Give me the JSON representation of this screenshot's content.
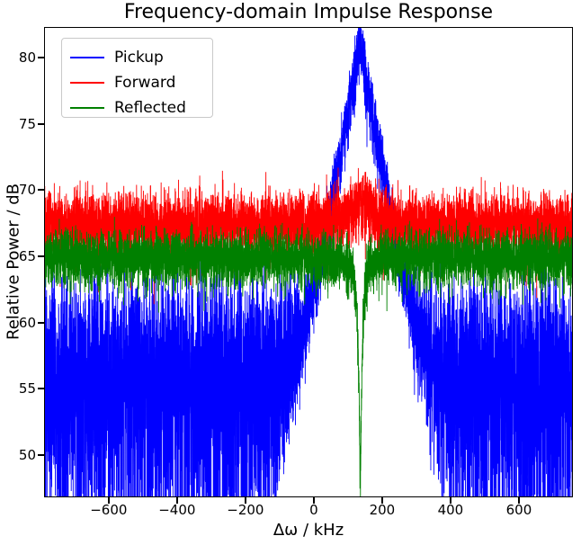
{
  "chart_data": {
    "type": "line",
    "title": "Frequency-domain Impulse Response",
    "xlabel": "Δω / kHz",
    "ylabel": "Relative Power / dB",
    "xlim": [
      -789,
      758
    ],
    "ylim": [
      46.8,
      82.3
    ],
    "xticks": [
      -600,
      -400,
      -200,
      0,
      200,
      400,
      600
    ],
    "yticks": [
      50,
      55,
      60,
      65,
      70,
      75,
      80
    ],
    "grid": false,
    "legend_position": "upper-left",
    "background_color": "#ffffff",
    "resonance_center_kHz": 135,
    "series": [
      {
        "name": "Pickup",
        "color": "#0000ff",
        "noise_floor_dB": 57,
        "peak": {
          "center_kHz": 135,
          "apex_dB": 81,
          "flank_slope_dB_per_kHz": 0.145
        },
        "signal_smoothness": 12,
        "noise_smoothness": 1
      },
      {
        "name": "Forward",
        "color": "#ff0000",
        "baseline_dB": 67.5,
        "bump": {
          "center_kHz": 135,
          "height_dB": 2.0,
          "halfwidth_kHz": 30
        },
        "noise_smoothness": 12
      },
      {
        "name": "Reflected",
        "color": "#008000",
        "baseline_dB": 65,
        "notch": {
          "center_kHz": 136,
          "floor_dB": 48.3,
          "halfwidth_kHz": 13
        },
        "noise_smoothness": 18
      }
    ],
    "n_points": 7400,
    "random_seed": 11
  }
}
